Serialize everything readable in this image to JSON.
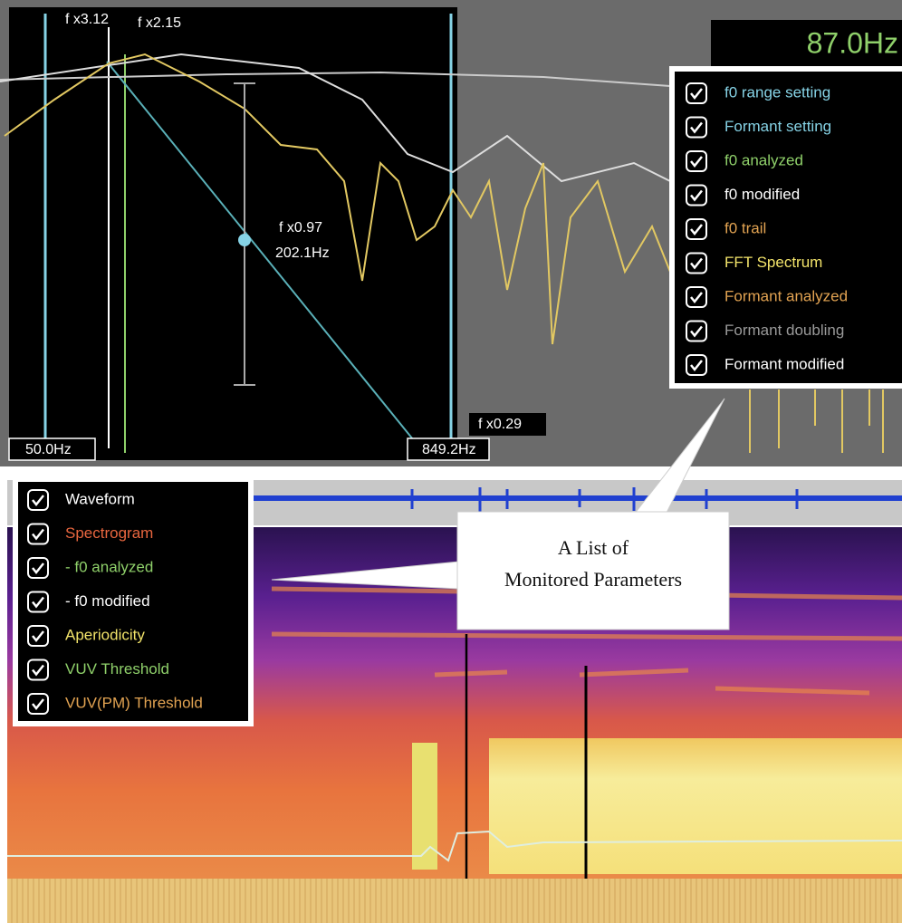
{
  "top_panel": {
    "readout": "87.0Hz",
    "markers": {
      "f_left": "f x3.12",
      "f_peak": "f x2.15",
      "f_center": "f x0.97",
      "freq_center": "202.1Hz",
      "f_right": "f x0.29",
      "range_low": "50.0Hz",
      "range_high": "849.2Hz"
    },
    "checklist": [
      {
        "label": "f0 range setting",
        "color": "#86d3e6"
      },
      {
        "label": "Formant setting",
        "color": "#86d3e6"
      },
      {
        "label": "f0 analyzed",
        "color": "#8fd06a"
      },
      {
        "label": "f0 modified",
        "color": "#ffffff"
      },
      {
        "label": "f0 trail",
        "color": "#e2a352"
      },
      {
        "label": "FFT Spectrum",
        "color": "#f2e36a"
      },
      {
        "label": "Formant analyzed",
        "color": "#e2a352"
      },
      {
        "label": "Formant doubling",
        "color": "#9a9a9a"
      },
      {
        "label": "Formant modified",
        "color": "#ffffff"
      }
    ]
  },
  "bottom_panel": {
    "checklist": [
      {
        "label": "Waveform",
        "color": "#ffffff"
      },
      {
        "label": "Spectrogram",
        "color": "#e8663f"
      },
      {
        "label": "- f0 analyzed",
        "color": "#8fd06a"
      },
      {
        "label": "- f0 modified",
        "color": "#ffffff"
      },
      {
        "label": "Aperiodicity",
        "color": "#f2e36a"
      },
      {
        "label": "VUV Threshold",
        "color": "#8fd06a"
      },
      {
        "label": "VUV(PM) Threshold",
        "color": "#e2a352"
      }
    ]
  },
  "callout": {
    "lines": [
      "A List of",
      "Monitored Parameters"
    ]
  }
}
